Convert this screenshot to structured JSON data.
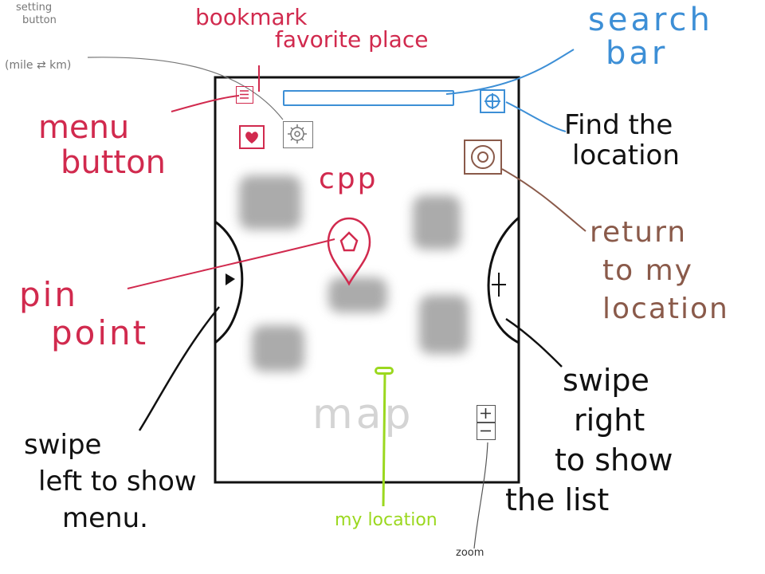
{
  "labels": {
    "setting_button": [
      "setting",
      "button"
    ],
    "unit_toggle": "(mile ⇄ km)",
    "bookmark": [
      "bookmark",
      "favorite place"
    ],
    "search_bar": [
      "search",
      "bar"
    ],
    "menu_button": [
      "menu",
      "button"
    ],
    "find_location": [
      "Find the",
      "location"
    ],
    "app": "cpp",
    "return_location": [
      "return",
      "to my",
      "location"
    ],
    "pin_point": [
      "pin",
      "point"
    ],
    "map": "map",
    "swipe_left": [
      "swipe",
      "left to show",
      "menu."
    ],
    "swipe_right": [
      "swipe",
      "right",
      "to show",
      "the list"
    ],
    "my_location": "my location",
    "zoom": "zoom"
  },
  "colors": {
    "red": "#d12a4e",
    "blue": "#3d8fd6",
    "brown": "#8a5a4a",
    "green": "#9bd81f",
    "gray": "#777777",
    "black": "#111111"
  },
  "icons": {
    "menu": "hamburger-icon",
    "bookmark": "heart-icon",
    "settings": "gear-icon",
    "find": "crosshair-icon",
    "return": "target-icon",
    "pin": "map-pin-icon",
    "zoom_in": "plus-icon",
    "zoom_out": "minus-icon"
  }
}
